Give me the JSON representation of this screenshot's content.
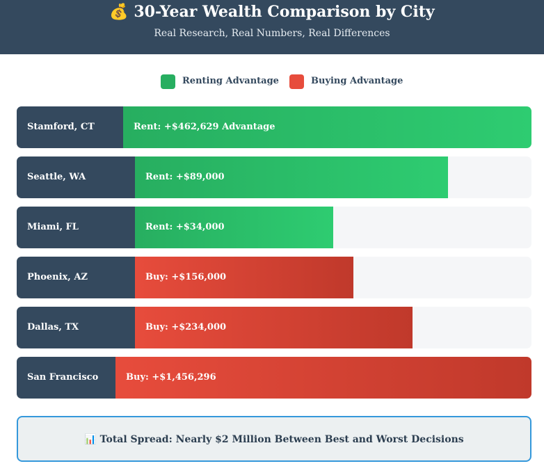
{
  "header": {
    "title": "💰 30-Year Wealth Comparison by City",
    "subtitle": "Real Research, Real Numbers, Real Differences"
  },
  "legend": [
    {
      "label": "Renting Advantage",
      "color": "#27ae60"
    },
    {
      "label": "Buying Advantage",
      "color": "#e74c3c"
    }
  ],
  "colors": {
    "rent": "#2ecc71",
    "buy": "#e74c3c",
    "city_panel": "#34495e",
    "summary_border": "#3498db"
  },
  "chart_data": {
    "type": "bar",
    "orientation": "horizontal",
    "categories": [
      "Stamford, CT",
      "Seattle, WA",
      "Miami, FL",
      "Phoenix, AZ",
      "Dallas, TX",
      "San Francisco"
    ],
    "series": [
      {
        "name": "Renting Advantage",
        "values": [
          462629,
          89000,
          34000,
          null,
          null,
          null
        ]
      },
      {
        "name": "Buying Advantage",
        "values": [
          null,
          null,
          null,
          156000,
          234000,
          1456296
        ]
      }
    ],
    "data_labels": [
      "Rent: +$462,629 Advantage",
      "Rent: +$89,000",
      "Rent: +$34,000",
      "Buy: +$156,000",
      "Buy: +$234,000",
      "Buy: +$1,456,296"
    ],
    "bar_fill_fraction": [
      1.0,
      0.79,
      0.5,
      0.55,
      0.7,
      1.0
    ],
    "legend_position": "top-center"
  },
  "summary": {
    "text": "📊 Total Spread: Nearly $2 Million Between Best and Worst Decisions"
  }
}
